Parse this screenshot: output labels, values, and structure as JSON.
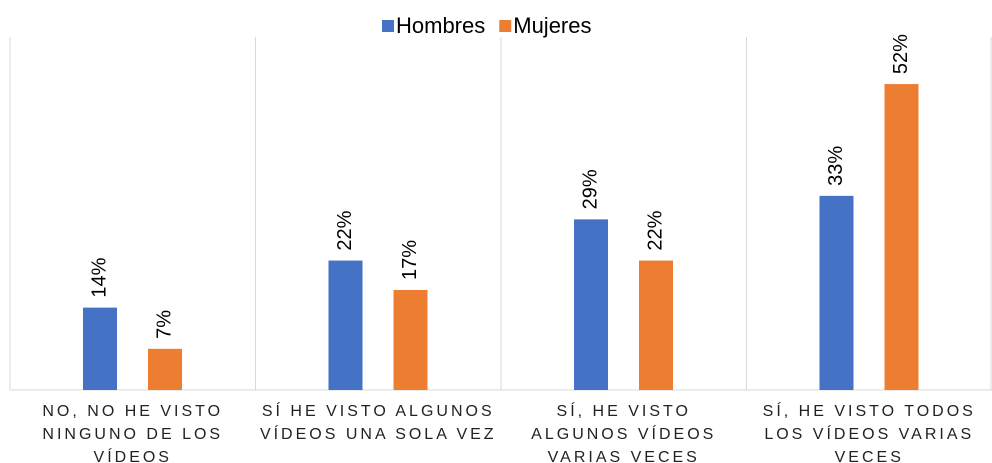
{
  "chart_data": {
    "type": "bar",
    "categories": [
      "NO, NO HE VISTO NINGUNO DE LOS VÍDEOS",
      "SÍ HE VISTO ALGUNOS VÍDEOS UNA SOLA VEZ",
      "SÍ, HE VISTO ALGUNOS VÍDEOS VARIAS VECES",
      "SÍ, HE VISTO TODOS LOS VÍDEOS VARIAS VECES"
    ],
    "series": [
      {
        "name": "Hombres",
        "color": "#4472c4",
        "values": [
          14,
          22,
          29,
          33
        ],
        "value_labels": [
          "14%",
          "22%",
          "29%",
          "33%"
        ]
      },
      {
        "name": "Mujeres",
        "color": "#ed7d31",
        "values": [
          7,
          17,
          22,
          52
        ],
        "value_labels": [
          "7%",
          "17%",
          "22%",
          "52%"
        ]
      }
    ],
    "ylim": [
      0,
      60
    ],
    "legend": "top"
  }
}
